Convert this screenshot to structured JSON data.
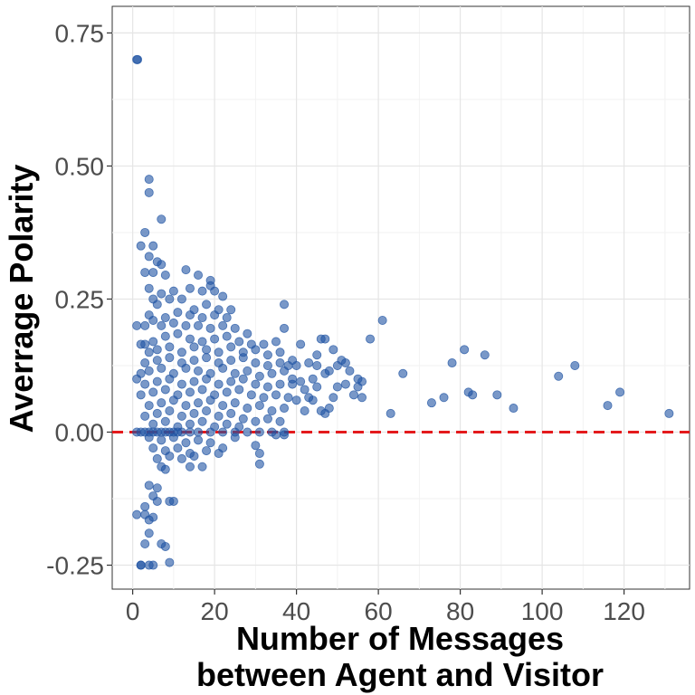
{
  "chart_data": {
    "type": "scatter",
    "title": "",
    "xlabel_line1": "Number of Messages",
    "xlabel_line2": "between Agent and Visitor",
    "ylabel": "Averrage Polarity",
    "xlim": [
      -5,
      136
    ],
    "ylim": [
      -0.295,
      0.8
    ],
    "x_ticks": [
      0,
      20,
      40,
      60,
      80,
      100,
      120
    ],
    "x_tick_labels": [
      "0",
      "20",
      "40",
      "60",
      "80",
      "100",
      "120"
    ],
    "y_ticks": [
      -0.25,
      0,
      0.25,
      0.5,
      0.75
    ],
    "y_tick_labels": [
      "-0.25",
      "0.00",
      "0.25",
      "0.50",
      "0.75"
    ],
    "grid": true,
    "reference_line": {
      "y": 0,
      "style": "dashed",
      "color": "#e41a1c"
    },
    "point_color": "#2054a3",
    "series": [
      {
        "points": [
          [
            1,
            0.7
          ],
          [
            1.2,
            0.7
          ],
          [
            4,
            0.475
          ],
          [
            4,
            0.45
          ],
          [
            7,
            0.4
          ],
          [
            2,
            0.35
          ],
          [
            3,
            0.375
          ],
          [
            5,
            0.35
          ],
          [
            4,
            0.33
          ],
          [
            6,
            0.32
          ],
          [
            7,
            0.315
          ],
          [
            3,
            0.3
          ],
          [
            5,
            0.3
          ],
          [
            8,
            0.295
          ],
          [
            13,
            0.305
          ],
          [
            16,
            0.295
          ],
          [
            19,
            0.285
          ],
          [
            19,
            0.275
          ],
          [
            4,
            0.27
          ],
          [
            5,
            0.25
          ],
          [
            7,
            0.26
          ],
          [
            10,
            0.265
          ],
          [
            14,
            0.27
          ],
          [
            17,
            0.265
          ],
          [
            20,
            0.265
          ],
          [
            22,
            0.255
          ],
          [
            6,
            0.24
          ],
          [
            9,
            0.25
          ],
          [
            12,
            0.25
          ],
          [
            15,
            0.23
          ],
          [
            18,
            0.24
          ],
          [
            21,
            0.23
          ],
          [
            24,
            0.23
          ],
          [
            4,
            0.22
          ],
          [
            8,
            0.215
          ],
          [
            11,
            0.225
          ],
          [
            14,
            0.22
          ],
          [
            17,
            0.215
          ],
          [
            20,
            0.22
          ],
          [
            23,
            0.215
          ],
          [
            1,
            0.2
          ],
          [
            3,
            0.2
          ],
          [
            5,
            0.21
          ],
          [
            7,
            0.2
          ],
          [
            10,
            0.205
          ],
          [
            13,
            0.2
          ],
          [
            16,
            0.2
          ],
          [
            19,
            0.195
          ],
          [
            22,
            0.2
          ],
          [
            25,
            0.195
          ],
          [
            28,
            0.185
          ],
          [
            2,
            0.165
          ],
          [
            3,
            0.165
          ],
          [
            5,
            0.17
          ],
          [
            8,
            0.18
          ],
          [
            11,
            0.185
          ],
          [
            14,
            0.175
          ],
          [
            17,
            0.17
          ],
          [
            20,
            0.175
          ],
          [
            23,
            0.18
          ],
          [
            26,
            0.17
          ],
          [
            29,
            0.165
          ],
          [
            32,
            0.165
          ],
          [
            35,
            0.17
          ],
          [
            37,
            0.24
          ],
          [
            37,
            0.195
          ],
          [
            4,
            0.15
          ],
          [
            6,
            0.155
          ],
          [
            9,
            0.16
          ],
          [
            12,
            0.15
          ],
          [
            15,
            0.16
          ],
          [
            18,
            0.155
          ],
          [
            21,
            0.15
          ],
          [
            24,
            0.16
          ],
          [
            27,
            0.15
          ],
          [
            30,
            0.155
          ],
          [
            33,
            0.145
          ],
          [
            36,
            0.15
          ],
          [
            3,
            0.13
          ],
          [
            6,
            0.135
          ],
          [
            9,
            0.14
          ],
          [
            12,
            0.13
          ],
          [
            15,
            0.135
          ],
          [
            18,
            0.14
          ],
          [
            21,
            0.13
          ],
          [
            24,
            0.135
          ],
          [
            27,
            0.14
          ],
          [
            30,
            0.13
          ],
          [
            33,
            0.125
          ],
          [
            36,
            0.13
          ],
          [
            39,
            0.135
          ],
          [
            1,
            0.1
          ],
          [
            2,
            0.11
          ],
          [
            4,
            0.115
          ],
          [
            7,
            0.12
          ],
          [
            10,
            0.11
          ],
          [
            13,
            0.12
          ],
          [
            16,
            0.115
          ],
          [
            19,
            0.11
          ],
          [
            22,
            0.12
          ],
          [
            25,
            0.11
          ],
          [
            28,
            0.115
          ],
          [
            31,
            0.105
          ],
          [
            34,
            0.11
          ],
          [
            37,
            0.115
          ],
          [
            40,
            0.125
          ],
          [
            3,
            0.09
          ],
          [
            6,
            0.095
          ],
          [
            9,
            0.1
          ],
          [
            12,
            0.09
          ],
          [
            15,
            0.095
          ],
          [
            18,
            0.1
          ],
          [
            21,
            0.09
          ],
          [
            24,
            0.095
          ],
          [
            27,
            0.1
          ],
          [
            30,
            0.09
          ],
          [
            33,
            0.085
          ],
          [
            36,
            0.09
          ],
          [
            39,
            0.1
          ],
          [
            2,
            0.07
          ],
          [
            5,
            0.075
          ],
          [
            8,
            0.08
          ],
          [
            11,
            0.07
          ],
          [
            14,
            0.075
          ],
          [
            17,
            0.08
          ],
          [
            20,
            0.07
          ],
          [
            23,
            0.075
          ],
          [
            26,
            0.08
          ],
          [
            29,
            0.07
          ],
          [
            32,
            0.065
          ],
          [
            35,
            0.07
          ],
          [
            38,
            0.065
          ],
          [
            4,
            0.05
          ],
          [
            7,
            0.055
          ],
          [
            10,
            0.06
          ],
          [
            13,
            0.05
          ],
          [
            16,
            0.055
          ],
          [
            19,
            0.06
          ],
          [
            22,
            0.05
          ],
          [
            25,
            0.055
          ],
          [
            28,
            0.045
          ],
          [
            31,
            0.05
          ],
          [
            34,
            0.04
          ],
          [
            37,
            0.045
          ],
          [
            3,
            0.03
          ],
          [
            6,
            0.035
          ],
          [
            9,
            0.04
          ],
          [
            12,
            0.03
          ],
          [
            15,
            0.035
          ],
          [
            18,
            0.04
          ],
          [
            21,
            0.03
          ],
          [
            24,
            0.035
          ],
          [
            27,
            0.025
          ],
          [
            30,
            0.02
          ],
          [
            33,
            0.025
          ],
          [
            36,
            0.02
          ],
          [
            5,
            0.015
          ],
          [
            8,
            0.02
          ],
          [
            11,
            0.01
          ],
          [
            14,
            0.015
          ],
          [
            17,
            0.02
          ],
          [
            20,
            0.01
          ],
          [
            23,
            0.015
          ],
          [
            26,
            0.01
          ],
          [
            1,
            0.0
          ],
          [
            2,
            0.0
          ],
          [
            3,
            0.0
          ],
          [
            4,
            0.0
          ],
          [
            5,
            0.0
          ],
          [
            6,
            0.0
          ],
          [
            7,
            0.0
          ],
          [
            8,
            0.0
          ],
          [
            9,
            0.0
          ],
          [
            10,
            0.0
          ],
          [
            11,
            0.0
          ],
          [
            12,
            0.0
          ],
          [
            14,
            0.0
          ],
          [
            16,
            0.0
          ],
          [
            19,
            0.0
          ],
          [
            22,
            0.0
          ],
          [
            25,
            0.0
          ],
          [
            28,
            0.0
          ],
          [
            31,
            0.0
          ],
          [
            34,
            0.0
          ],
          [
            37,
            0.0
          ],
          [
            4,
            -0.01
          ],
          [
            7,
            -0.015
          ],
          [
            10,
            -0.01
          ],
          [
            13,
            -0.02
          ],
          [
            16,
            -0.015
          ],
          [
            19,
            -0.02
          ],
          [
            22,
            -0.03
          ],
          [
            25,
            -0.01
          ],
          [
            5,
            -0.03
          ],
          [
            8,
            -0.035
          ],
          [
            11,
            -0.03
          ],
          [
            14,
            -0.04
          ],
          [
            18,
            -0.035
          ],
          [
            21,
            -0.04
          ],
          [
            6,
            -0.05
          ],
          [
            9,
            -0.045
          ],
          [
            12,
            -0.05
          ],
          [
            15,
            -0.045
          ],
          [
            7,
            -0.065
          ],
          [
            8,
            -0.07
          ],
          [
            14,
            -0.065
          ],
          [
            17,
            -0.065
          ],
          [
            31,
            -0.06
          ],
          [
            37,
            -0.005
          ],
          [
            35,
            -0.005
          ],
          [
            30,
            -0.025
          ],
          [
            31,
            -0.04
          ],
          [
            4,
            -0.1
          ],
          [
            5,
            -0.12
          ],
          [
            6,
            -0.105
          ],
          [
            3,
            -0.14
          ],
          [
            6,
            -0.13
          ],
          [
            9,
            -0.13
          ],
          [
            10,
            -0.13
          ],
          [
            1,
            -0.155
          ],
          [
            3,
            -0.155
          ],
          [
            5,
            -0.16
          ],
          [
            4,
            -0.19
          ],
          [
            3,
            -0.21
          ],
          [
            7,
            -0.21
          ],
          [
            4,
            -0.165
          ],
          [
            2,
            -0.25
          ],
          [
            4,
            -0.25
          ],
          [
            5,
            -0.25
          ],
          [
            9,
            -0.245
          ],
          [
            8,
            -0.215
          ],
          [
            2,
            -0.25
          ],
          [
            41,
            0.165
          ],
          [
            43,
            0.065
          ],
          [
            44,
            0.1
          ],
          [
            45,
            0.145
          ],
          [
            45,
            0.085
          ],
          [
            46,
            0.175
          ],
          [
            47,
            0.175
          ],
          [
            47,
            0.11
          ],
          [
            48,
            0.045
          ],
          [
            49,
            0.155
          ],
          [
            49,
            0.065
          ],
          [
            50,
            0.125
          ],
          [
            50,
            0.085
          ],
          [
            51,
            0.135
          ],
          [
            52,
            0.13
          ],
          [
            52,
            0.09
          ],
          [
            53,
            0.115
          ],
          [
            54,
            0.07
          ],
          [
            55,
            0.1
          ],
          [
            55,
            0.085
          ],
          [
            56,
            0.065
          ],
          [
            56,
            0.095
          ],
          [
            58,
            0.175
          ],
          [
            61,
            0.21
          ],
          [
            63,
            0.035
          ],
          [
            66,
            0.11
          ],
          [
            73,
            0.055
          ],
          [
            76,
            0.065
          ],
          [
            78,
            0.13
          ],
          [
            81,
            0.155
          ],
          [
            82,
            0.075
          ],
          [
            83,
            0.07
          ],
          [
            86,
            0.145
          ],
          [
            89,
            0.07
          ],
          [
            93,
            0.045
          ],
          [
            104,
            0.105
          ],
          [
            108,
            0.125
          ],
          [
            116,
            0.05
          ],
          [
            119,
            0.075
          ],
          [
            131,
            0.035
          ],
          [
            38,
            0.125
          ],
          [
            39,
            0.09
          ],
          [
            40,
            0.06
          ],
          [
            41,
            0.095
          ],
          [
            42,
            0.08
          ],
          [
            43,
            0.13
          ],
          [
            44,
            0.06
          ],
          [
            46,
            0.04
          ],
          [
            47,
            0.035
          ],
          [
            45,
            0.125
          ],
          [
            48,
            0.115
          ],
          [
            42,
            0.04
          ]
        ]
      }
    ]
  }
}
